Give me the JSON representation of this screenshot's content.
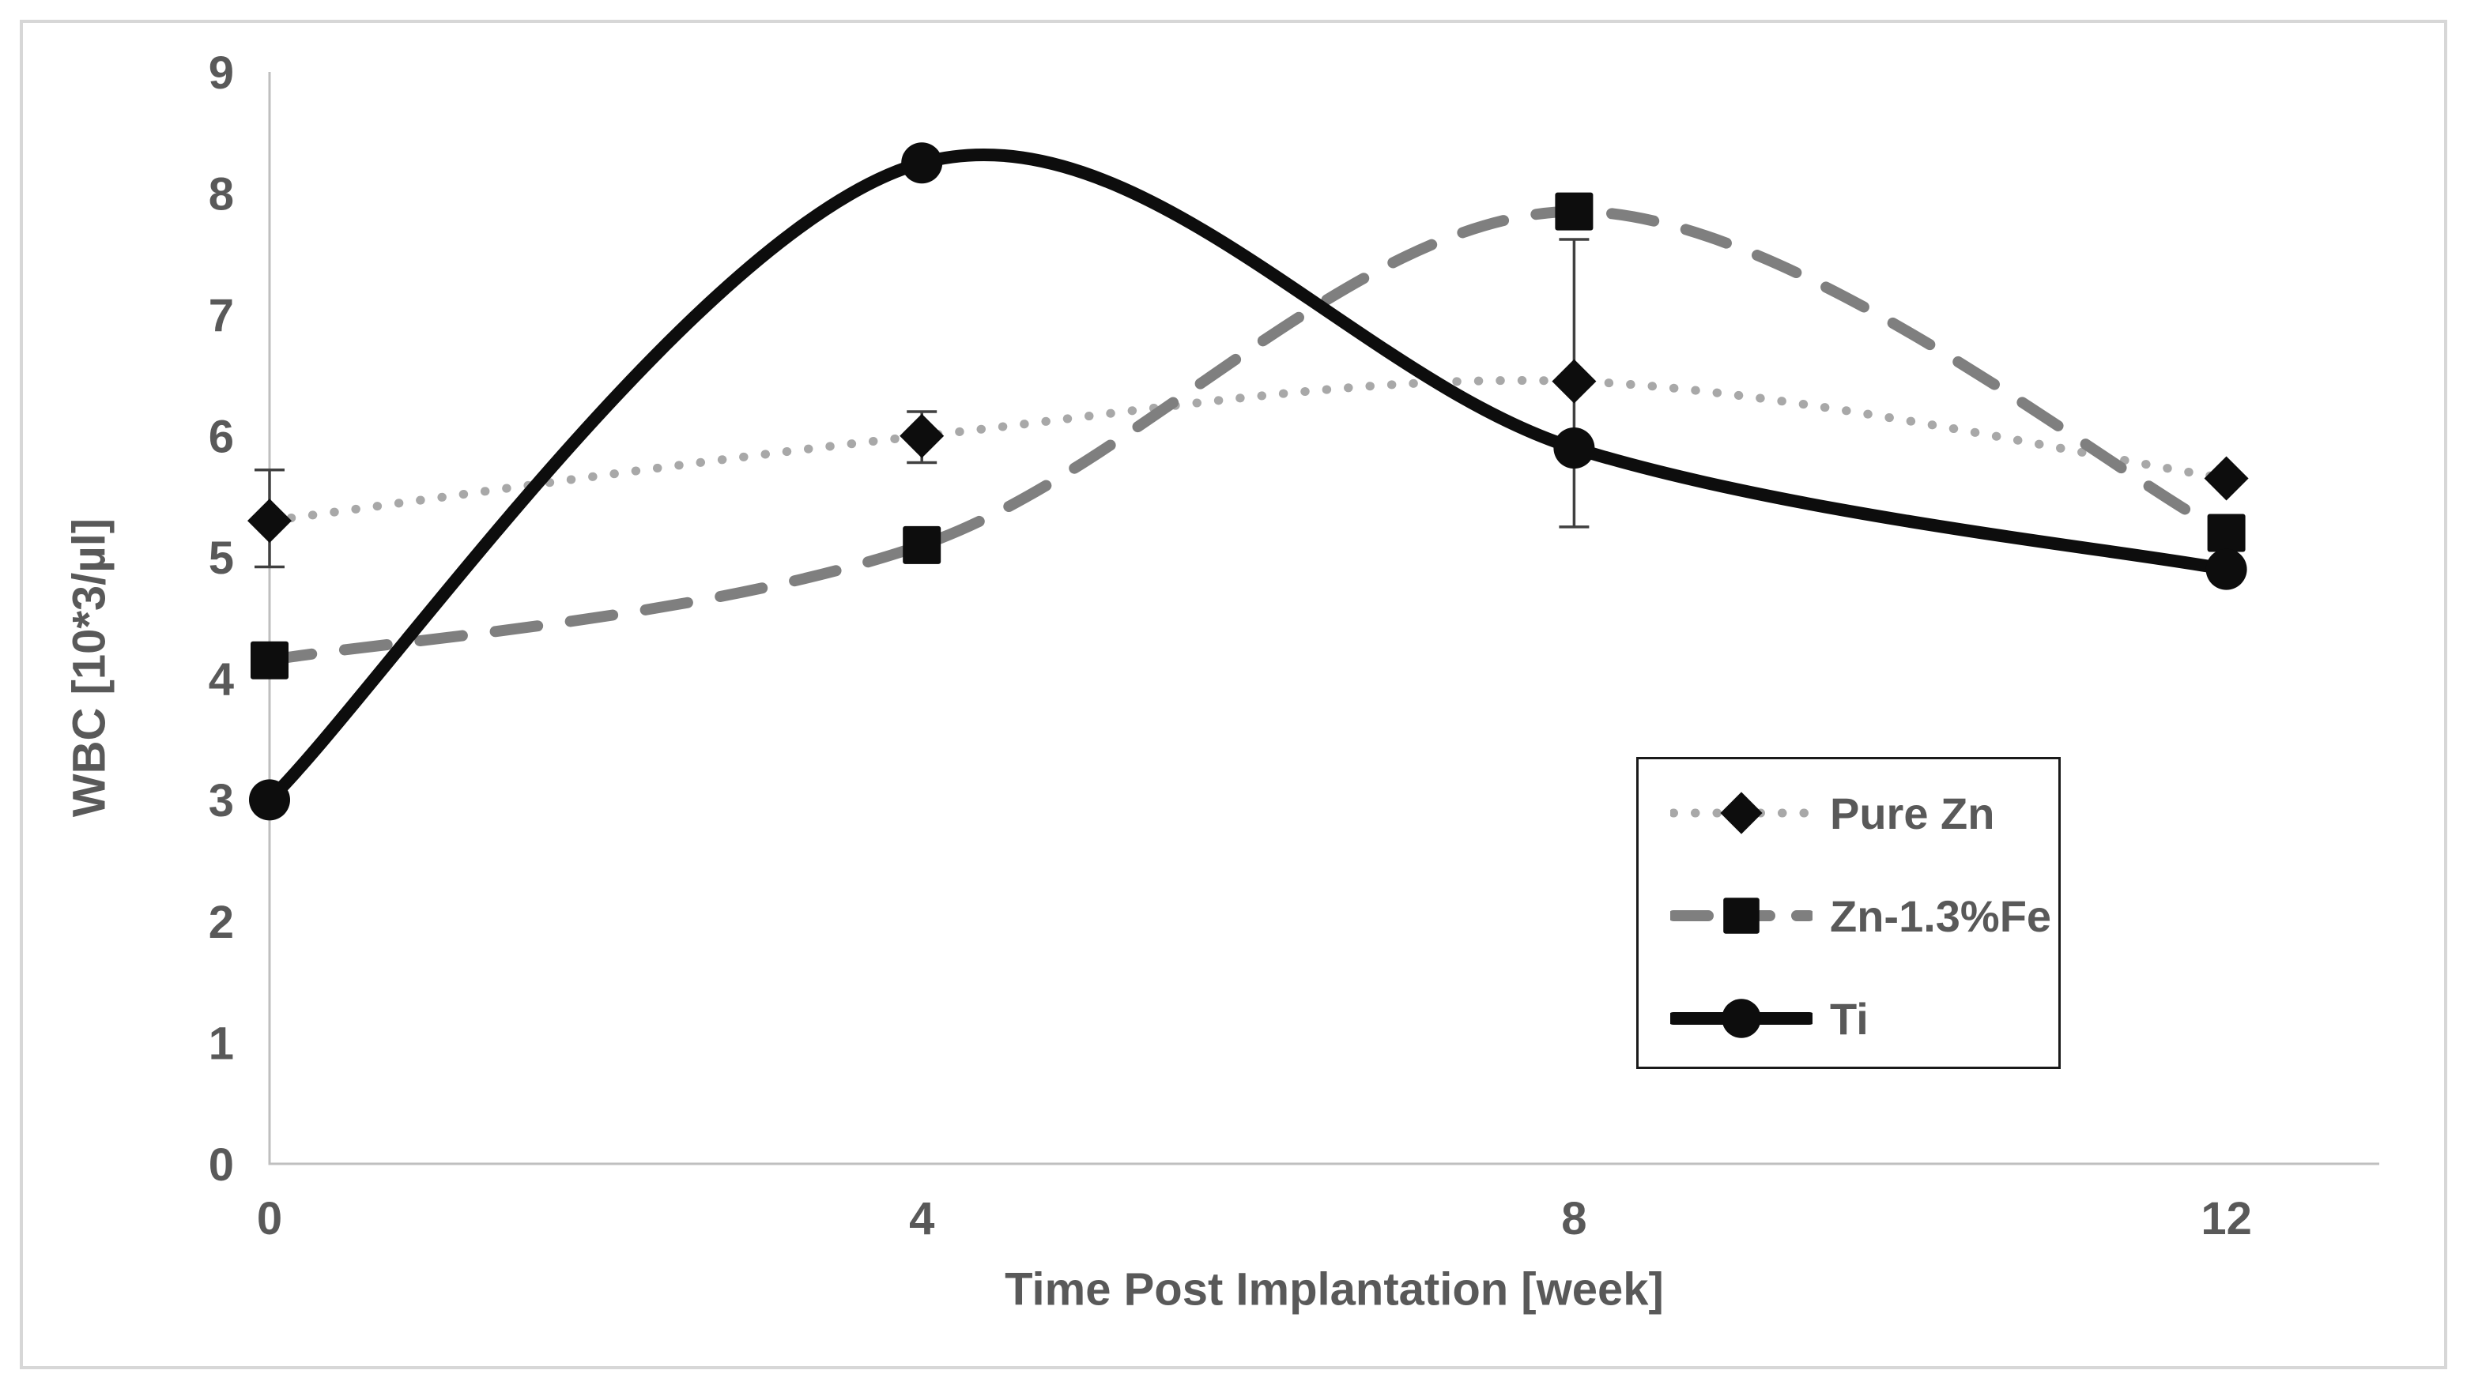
{
  "figure": {
    "background": "#ffffff",
    "frame_border_color": "#d7d7d7"
  },
  "colors": {
    "axis_line": "#bfbfbf",
    "label_text": "#595959",
    "error_bar": "#404040",
    "legend_border": "#1a1a1a",
    "marker": "#0d0d0d"
  },
  "chart_data": {
    "type": "line",
    "title": "",
    "xlabel": "Time Post Implantation [week]",
    "ylabel": "WBC [10*3/µl]",
    "x": [
      0,
      4,
      8,
      12
    ],
    "x_tick_labels": [
      "0",
      "4",
      "8",
      "12"
    ],
    "y_tick_labels": [
      "0",
      "1",
      "2",
      "3",
      "4",
      "5",
      "6",
      "7",
      "8",
      "9"
    ],
    "y_ticks": [
      0,
      1,
      2,
      3,
      4,
      5,
      6,
      7,
      8,
      9
    ],
    "ylim": [
      0,
      9
    ],
    "xlim": [
      0,
      12.95
    ],
    "grid": false,
    "legend_position": "inside-right",
    "line_smoothing": "spline",
    "series": [
      {
        "name": "Pure Zn",
        "marker": "diamond",
        "line_style": "dotted",
        "line_color": "#a8a8a8",
        "marker_color": "#0d0d0d",
        "values": [
          5.3,
          6.0,
          6.45,
          5.65
        ],
        "error_bars": [
          {
            "x": 0,
            "plus": 0.42,
            "minus": 0.38
          },
          {
            "x": 4,
            "plus": 0.2,
            "minus": 0.22
          },
          {
            "x": 8,
            "plus": 1.17,
            "minus": 1.2
          }
        ]
      },
      {
        "name": "Zn-1.3%Fe",
        "marker": "square",
        "line_style": "dashed",
        "line_color": "#7f7f7f",
        "marker_color": "#0d0d0d",
        "values": [
          4.15,
          5.1,
          7.85,
          5.2
        ],
        "error_bars": []
      },
      {
        "name": "Ti",
        "marker": "circle",
        "line_style": "solid",
        "line_color": "#0d0d0d",
        "marker_color": "#0d0d0d",
        "values": [
          3.0,
          8.25,
          5.9,
          4.9
        ],
        "error_bars": []
      }
    ]
  }
}
